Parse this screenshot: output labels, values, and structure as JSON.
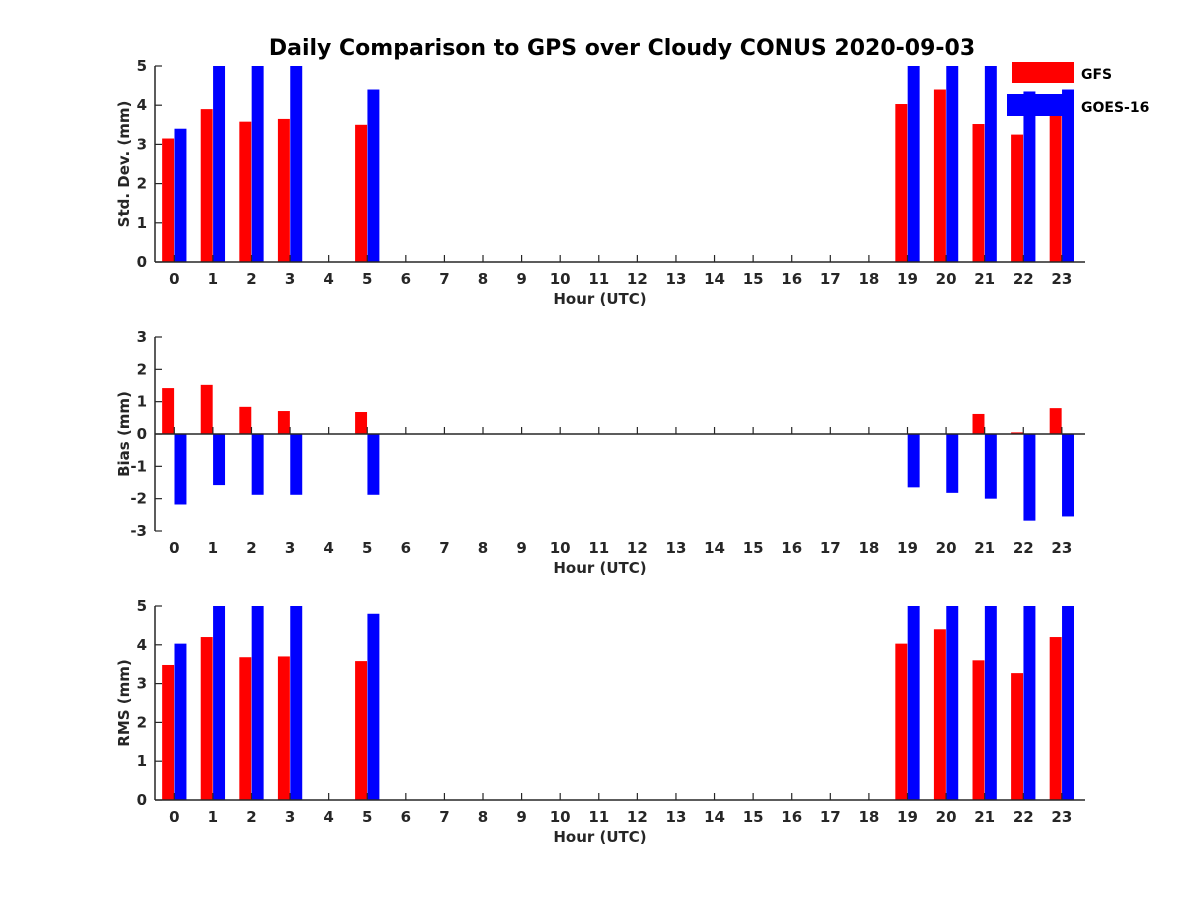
{
  "title": "Daily Comparison to GPS over Cloudy CONUS 2020-09-03",
  "colors": {
    "GFS": "#ff0000",
    "GOES-16": "#0000ff",
    "axis": "#262626"
  },
  "legend": {
    "placement": "top-right",
    "entries": [
      "GFS",
      "GOES-16"
    ]
  },
  "chart_data": [
    {
      "type": "bar",
      "name": "stddev",
      "xlabel": "Hour (UTC)",
      "ylabel": "Std. Dev. (mm)",
      "ylim": [
        0,
        5
      ],
      "yticks": [
        0,
        1,
        2,
        3,
        4,
        5
      ],
      "categories": [
        "0",
        "1",
        "2",
        "3",
        "4",
        "5",
        "6",
        "7",
        "8",
        "9",
        "10",
        "11",
        "12",
        "13",
        "14",
        "15",
        "16",
        "17",
        "18",
        "19",
        "20",
        "21",
        "22",
        "23"
      ],
      "series": [
        {
          "name": "GFS",
          "values": [
            3.15,
            3.9,
            3.58,
            3.65,
            null,
            3.5,
            null,
            null,
            null,
            null,
            null,
            null,
            null,
            null,
            null,
            null,
            null,
            null,
            null,
            4.03,
            4.4,
            3.52,
            3.25,
            4.2
          ]
        },
        {
          "name": "GOES-16",
          "values": [
            3.4,
            5.0,
            5.0,
            5.0,
            null,
            4.4,
            null,
            null,
            null,
            null,
            null,
            null,
            null,
            null,
            null,
            null,
            null,
            null,
            null,
            5.0,
            5.0,
            5.0,
            4.35,
            4.4
          ]
        }
      ],
      "grid": false
    },
    {
      "type": "bar",
      "name": "bias",
      "xlabel": "Hour (UTC)",
      "ylabel": "Bias (mm)",
      "ylim": [
        -3,
        3
      ],
      "yticks": [
        -3,
        -2,
        -1,
        0,
        1,
        2,
        3
      ],
      "categories": [
        "0",
        "1",
        "2",
        "3",
        "4",
        "5",
        "6",
        "7",
        "8",
        "9",
        "10",
        "11",
        "12",
        "13",
        "14",
        "15",
        "16",
        "17",
        "18",
        "19",
        "20",
        "21",
        "22",
        "23"
      ],
      "series": [
        {
          "name": "GFS",
          "values": [
            1.42,
            1.52,
            0.84,
            0.71,
            null,
            0.68,
            null,
            null,
            null,
            null,
            null,
            null,
            null,
            null,
            null,
            null,
            null,
            null,
            null,
            null,
            null,
            0.62,
            0.05,
            0.8
          ]
        },
        {
          "name": "GOES-16",
          "values": [
            -2.18,
            -1.58,
            -1.88,
            -1.88,
            null,
            -1.88,
            null,
            null,
            null,
            null,
            null,
            null,
            null,
            null,
            null,
            null,
            null,
            null,
            null,
            -1.65,
            -1.82,
            -2.0,
            -2.68,
            -2.55
          ]
        }
      ],
      "grid": false
    },
    {
      "type": "bar",
      "name": "rms",
      "xlabel": "Hour (UTC)",
      "ylabel": "RMS (mm)",
      "ylim": [
        0,
        5
      ],
      "yticks": [
        0,
        1,
        2,
        3,
        4,
        5
      ],
      "categories": [
        "0",
        "1",
        "2",
        "3",
        "4",
        "5",
        "6",
        "7",
        "8",
        "9",
        "10",
        "11",
        "12",
        "13",
        "14",
        "15",
        "16",
        "17",
        "18",
        "19",
        "20",
        "21",
        "22",
        "23"
      ],
      "series": [
        {
          "name": "GFS",
          "values": [
            3.48,
            4.2,
            3.68,
            3.7,
            null,
            3.58,
            null,
            null,
            null,
            null,
            null,
            null,
            null,
            null,
            null,
            null,
            null,
            null,
            null,
            4.03,
            4.4,
            3.6,
            3.27,
            4.2
          ]
        },
        {
          "name": "GOES-16",
          "values": [
            4.03,
            5.0,
            5.0,
            5.0,
            null,
            4.8,
            null,
            null,
            null,
            null,
            null,
            null,
            null,
            null,
            null,
            null,
            null,
            null,
            null,
            5.0,
            5.0,
            5.0,
            5.0,
            5.0
          ]
        }
      ],
      "grid": false
    }
  ]
}
